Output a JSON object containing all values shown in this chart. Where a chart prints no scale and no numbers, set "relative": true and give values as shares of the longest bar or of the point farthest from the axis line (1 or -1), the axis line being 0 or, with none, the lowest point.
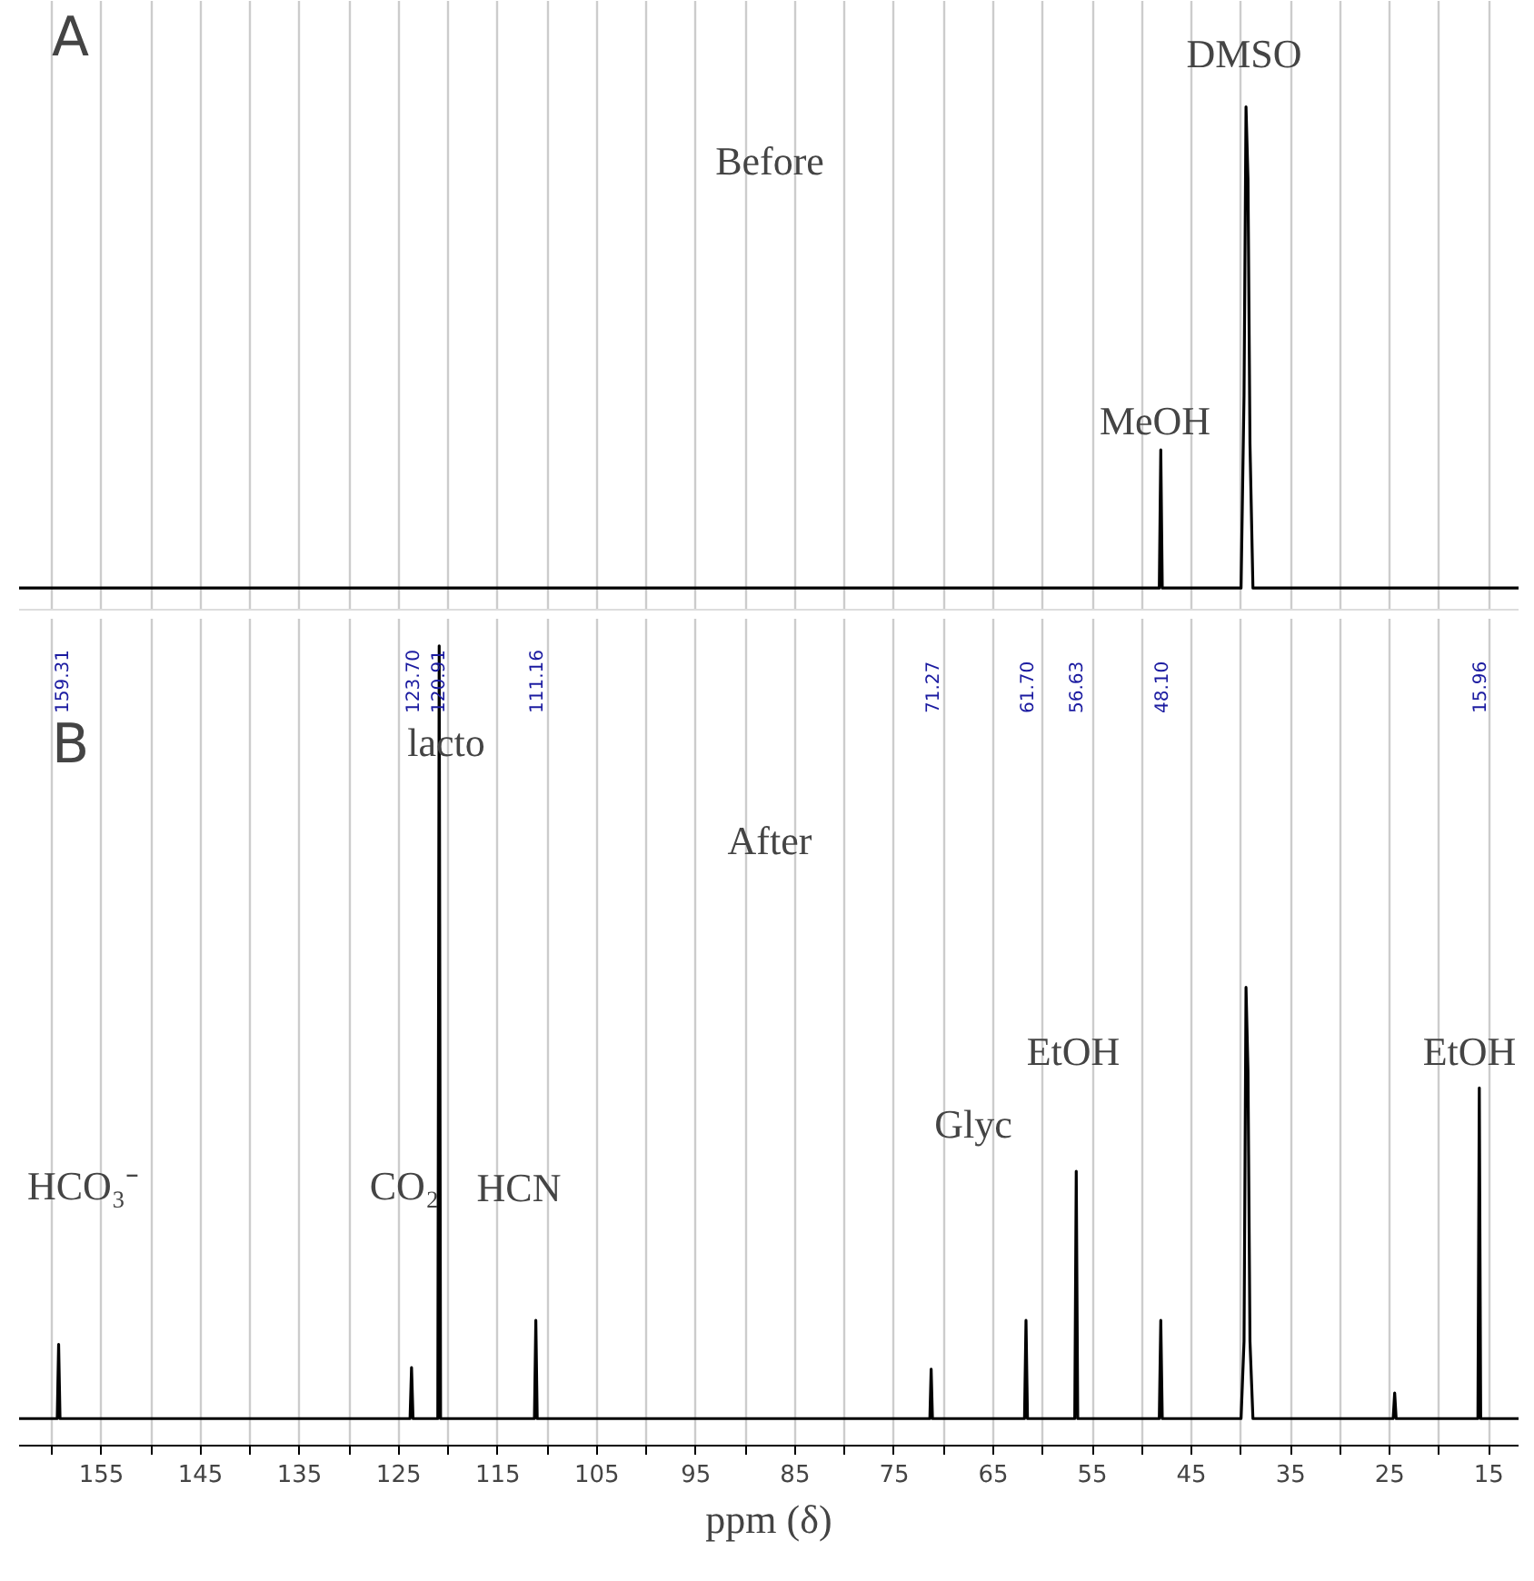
{
  "chart_data": [
    {
      "type": "line",
      "relative": true,
      "xlim": [
        163.3,
        12
      ],
      "tick_labels": false,
      "grid": "x",
      "xticks": [
        {
          "value": 160,
          "label": null
        },
        155,
        {
          "value": 150,
          "label": null
        },
        145,
        {
          "value": 140,
          "label": null
        },
        135,
        {
          "value": 130,
          "label": null
        },
        125,
        {
          "value": 120,
          "label": null
        },
        115,
        {
          "value": 110,
          "label": null
        },
        105,
        {
          "value": 100,
          "label": null
        },
        95,
        {
          "value": 90,
          "label": null
        },
        85,
        {
          "value": 80,
          "label": null
        },
        75,
        {
          "value": 70,
          "label": null
        },
        65,
        {
          "value": 60,
          "label": null
        },
        55,
        {
          "value": 50,
          "label": null
        },
        45,
        {
          "value": 40,
          "label": null
        },
        35,
        {
          "value": 30,
          "label": null
        },
        25,
        {
          "value": 20,
          "label": null
        },
        15
      ],
      "series": [
        {
          "color": "#000000",
          "x": [
            163.3,
            48.25,
            48.1,
            47.95,
            40.0,
            39.7,
            39.5,
            39.3,
            39.1,
            38.8,
            12
          ],
          "values": [
            0,
            0,
            0.287,
            0,
            0,
            0.4,
            1.0,
            0.85,
            0.3,
            0,
            0
          ]
        }
      ],
      "annotations": [
        "A",
        "Before",
        "DMSO",
        "MeOH"
      ]
    },
    {
      "type": "line",
      "relative": true,
      "xlim": [
        163.3,
        12
      ],
      "tick_labels": "x",
      "grid": "x",
      "xlabel": "ppm (δ)",
      "xticks": [
        {
          "value": 160,
          "label": null
        },
        155,
        {
          "value": 150,
          "label": null
        },
        145,
        {
          "value": 140,
          "label": null
        },
        135,
        {
          "value": 130,
          "label": null
        },
        125,
        {
          "value": 120,
          "label": null
        },
        115,
        {
          "value": 110,
          "label": null
        },
        105,
        {
          "value": 100,
          "label": null
        },
        95,
        {
          "value": 90,
          "label": null
        },
        85,
        {
          "value": 80,
          "label": null
        },
        75,
        {
          "value": 70,
          "label": null
        },
        65,
        {
          "value": 60,
          "label": null
        },
        55,
        {
          "value": 50,
          "label": null
        },
        45,
        {
          "value": 40,
          "label": null
        },
        35,
        {
          "value": 30,
          "label": null
        },
        25,
        {
          "value": 20,
          "label": null
        },
        15
      ],
      "series": [
        {
          "color": "#000000",
          "x": [
            163.3,
            159.45,
            159.31,
            159.17,
            123.85,
            123.7,
            123.55,
            121.05,
            120.91,
            120.77,
            111.3,
            111.16,
            111.02,
            71.4,
            71.27,
            71.14,
            61.85,
            61.7,
            61.55,
            56.78,
            56.63,
            56.48,
            48.25,
            48.1,
            47.95,
            40.0,
            39.7,
            39.5,
            39.3,
            39.1,
            38.8,
            24.65,
            24.5,
            24.35,
            16.1,
            15.96,
            15.82,
            12
          ],
          "values": [
            0,
            0,
            0.096,
            0,
            0,
            0.066,
            0,
            0,
            1,
            0,
            0,
            0.127,
            0,
            0,
            0.064,
            0,
            0,
            0.127,
            0,
            0,
            0.32,
            0,
            0,
            0.127,
            0,
            0,
            0.1,
            0.558,
            0.45,
            0.1,
            0,
            0,
            0.033,
            0,
            0,
            0.428,
            0,
            0
          ]
        }
      ],
      "annotations": [
        "B",
        "After",
        "lacto",
        "HCO₃⁻",
        "CO₂",
        "HCN",
        "Glyc",
        "EtOH",
        "EtOH",
        "159.31",
        "123.70",
        "120.91",
        "111.16",
        "71.27",
        "61.70",
        "56.63",
        "48.10",
        "15.96"
      ]
    }
  ]
}
